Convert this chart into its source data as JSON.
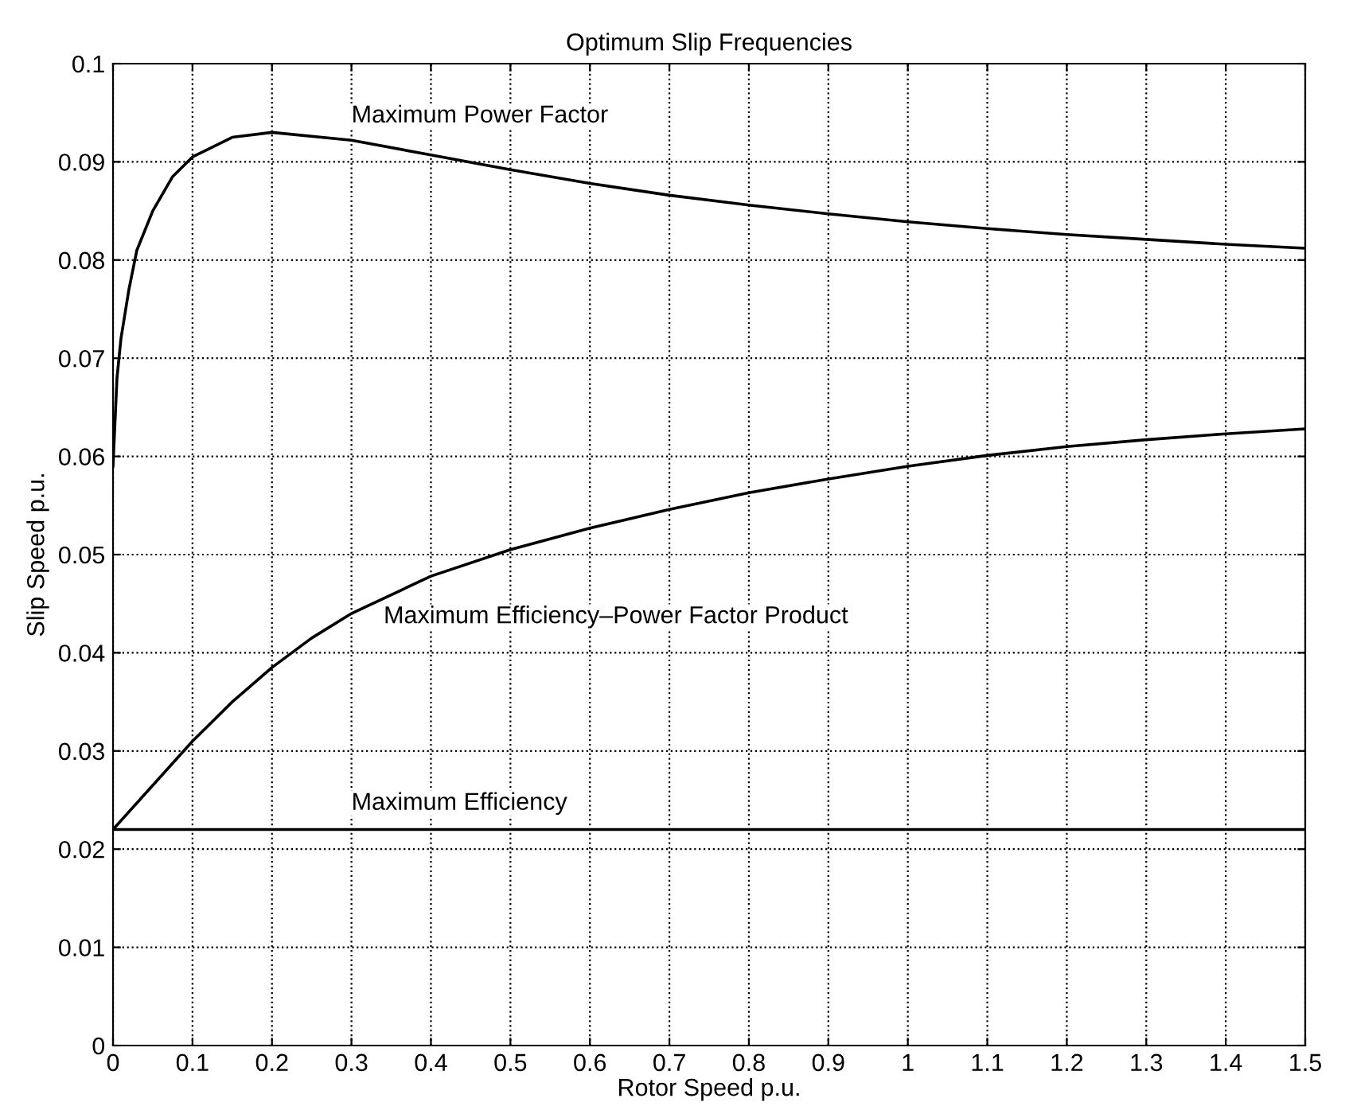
{
  "chart_data": {
    "type": "line",
    "title": "Optimum Slip Frequencies",
    "xlabel": "Rotor Speed p.u.",
    "ylabel": "Slip Speed p.u.",
    "xlim": [
      0,
      1.5
    ],
    "ylim": [
      0,
      0.1
    ],
    "xticks": [
      0,
      0.1,
      0.2,
      0.3,
      0.4,
      0.5,
      0.6,
      0.7,
      0.8,
      0.9,
      1,
      1.1,
      1.2,
      1.3,
      1.4,
      1.5
    ],
    "yticks": [
      0,
      0.01,
      0.02,
      0.03,
      0.04,
      0.05,
      0.06,
      0.07,
      0.08,
      0.09,
      0.1
    ],
    "grid": true,
    "line_style": "solid",
    "marker": "none",
    "series": [
      {
        "color": "#000000",
        "x": [
          0,
          0.005,
          0.01,
          0.02,
          0.03,
          0.05,
          0.075,
          0.1,
          0.15,
          0.2,
          0.3,
          0.4,
          0.5,
          0.6,
          0.7,
          0.8,
          0.9,
          1.0,
          1.1,
          1.2,
          1.3,
          1.4,
          1.5
        ],
        "values": [
          0.059,
          0.068,
          0.072,
          0.077,
          0.081,
          0.085,
          0.0885,
          0.0905,
          0.0925,
          0.093,
          0.0922,
          0.0907,
          0.0892,
          0.0878,
          0.0866,
          0.0856,
          0.0847,
          0.0839,
          0.0832,
          0.0826,
          0.0821,
          0.0816,
          0.0812
        ]
      },
      {
        "color": "#000000",
        "x": [
          0,
          0.05,
          0.1,
          0.15,
          0.2,
          0.25,
          0.3,
          0.4,
          0.5,
          0.6,
          0.7,
          0.8,
          0.9,
          1.0,
          1.1,
          1.2,
          1.3,
          1.4,
          1.5
        ],
        "values": [
          0.022,
          0.0265,
          0.031,
          0.035,
          0.0385,
          0.0415,
          0.044,
          0.0478,
          0.0505,
          0.0527,
          0.0546,
          0.0563,
          0.0577,
          0.059,
          0.0601,
          0.061,
          0.0617,
          0.0623,
          0.0628
        ]
      },
      {
        "color": "#000000",
        "x": [
          0,
          1.5
        ],
        "values": [
          0.022,
          0.022
        ]
      }
    ],
    "annotations": [
      "Maximum Power Factor",
      "Maximum Efficiency–Power Factor Product",
      "Maximum Efficiency"
    ]
  }
}
